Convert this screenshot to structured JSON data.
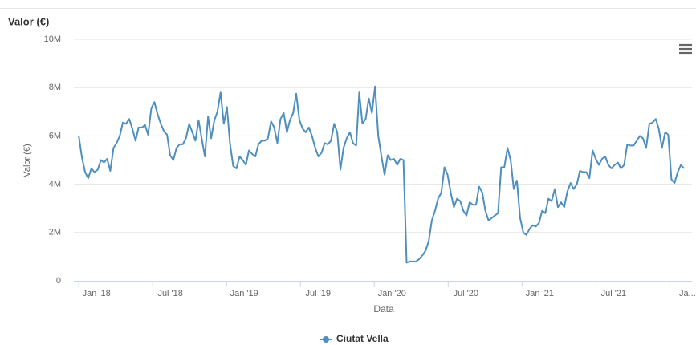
{
  "chart_data": {
    "type": "line",
    "title": "Valor (€)",
    "y_label": "Valor (€)",
    "x_label": "Data",
    "ylim": [
      0,
      10000000
    ],
    "yticks": [
      0,
      {
        "value": 2000000,
        "label": "2M"
      },
      {
        "value": 4000000,
        "label": "4M"
      },
      {
        "value": 6000000,
        "label": "6M"
      },
      {
        "value": 8000000,
        "label": "8M"
      },
      {
        "value": 10000000,
        "label": "10M"
      }
    ],
    "xlim": [
      -0.4,
      49.8
    ],
    "xticks": [
      {
        "value": 0,
        "label": "Jan '18"
      },
      {
        "value": 6,
        "label": "Jul '18"
      },
      {
        "value": 12,
        "label": "Jan '19"
      },
      {
        "value": 18,
        "label": "Jul '19"
      },
      {
        "value": 24,
        "label": "Jan '20"
      },
      {
        "value": 30,
        "label": "Jul '20"
      },
      {
        "value": 36,
        "label": "Jan '21"
      },
      {
        "value": 42,
        "label": "Jul '21"
      },
      {
        "value": 48,
        "label": "Ja..."
      }
    ],
    "grid": true,
    "legend": "bottom",
    "x": [
      0,
      0.26,
      0.51,
      0.77,
      1.02,
      1.28,
      1.54,
      1.79,
      2.05,
      2.3,
      2.56,
      2.82,
      3.07,
      3.33,
      3.58,
      3.84,
      4.1,
      4.35,
      4.61,
      4.86,
      5.12,
      5.38,
      5.63,
      5.89,
      6.14,
      6.4,
      6.66,
      6.91,
      7.17,
      7.42,
      7.68,
      7.94,
      8.19,
      8.45,
      8.7,
      8.96,
      9.22,
      9.47,
      9.73,
      9.98,
      10.24,
      10.5,
      10.75,
      11.01,
      11.26,
      11.52,
      11.78,
      12.03,
      12.29,
      12.54,
      12.8,
      13.06,
      13.31,
      13.57,
      13.82,
      14.08,
      14.34,
      14.59,
      14.85,
      15.1,
      15.36,
      15.62,
      15.87,
      16.13,
      16.38,
      16.64,
      16.9,
      17.15,
      17.41,
      17.66,
      17.92,
      18.18,
      18.43,
      18.69,
      18.94,
      19.2,
      19.46,
      19.71,
      19.97,
      20.22,
      20.48,
      20.74,
      20.99,
      21.25,
      21.5,
      21.76,
      22.02,
      22.27,
      22.53,
      22.78,
      23.04,
      23.3,
      23.55,
      23.81,
      24.06,
      24.32,
      24.58,
      24.83,
      25.09,
      25.34,
      25.6,
      25.86,
      26.11,
      26.37,
      26.62,
      26.88,
      27.14,
      27.39,
      27.65,
      27.9,
      28.16,
      28.42,
      28.67,
      28.93,
      29.18,
      29.44,
      29.7,
      29.95,
      30.21,
      30.46,
      30.72,
      30.98,
      31.23,
      31.49,
      31.74,
      32.0,
      32.26,
      32.51,
      32.77,
      33.02,
      33.28,
      33.54,
      33.79,
      34.05,
      34.3,
      34.56,
      34.82,
      35.07,
      35.33,
      35.58,
      35.84,
      36.1,
      36.35,
      36.61,
      36.86,
      37.12,
      37.38,
      37.63,
      37.89,
      38.14,
      38.4,
      38.66,
      38.91,
      39.17,
      39.42,
      39.68,
      39.94,
      40.19,
      40.45,
      40.7,
      40.96,
      41.22,
      41.47,
      41.73,
      41.98,
      42.24,
      42.5,
      42.75,
      43.01,
      43.26,
      43.52,
      43.78,
      44.03,
      44.29,
      44.54,
      44.8,
      45.06,
      45.31,
      45.57,
      45.82,
      46.08,
      46.34,
      46.59,
      46.85,
      47.1,
      47.36,
      47.62,
      47.87,
      48.13,
      48.38,
      48.64,
      48.9,
      49.15
    ],
    "series": [
      {
        "name": "Ciutat Vella",
        "color": "#4f8fc0",
        "values": [
          6000000,
          5100000,
          4500000,
          4250000,
          4650000,
          4500000,
          4600000,
          5000000,
          4900000,
          5050000,
          4550000,
          5500000,
          5700000,
          6000000,
          6550000,
          6500000,
          6700000,
          6300000,
          5800000,
          6350000,
          6350000,
          6450000,
          6050000,
          7150000,
          7400000,
          6900000,
          6500000,
          6200000,
          6050000,
          5200000,
          5000000,
          5500000,
          5650000,
          5650000,
          5900000,
          6500000,
          6150000,
          5800000,
          6650000,
          5900000,
          5150000,
          6800000,
          5900000,
          6650000,
          7000000,
          7800000,
          6500000,
          7200000,
          5650000,
          4750000,
          4650000,
          5150000,
          5000000,
          4800000,
          5400000,
          5250000,
          5150000,
          5650000,
          5800000,
          5800000,
          5900000,
          6600000,
          6350000,
          5700000,
          6700000,
          6950000,
          6150000,
          6650000,
          6950000,
          7750000,
          6650000,
          6300000,
          6150000,
          6350000,
          6000000,
          5500000,
          5150000,
          5300000,
          5700000,
          5650000,
          5800000,
          6500000,
          6150000,
          4600000,
          5500000,
          5900000,
          6150000,
          5700000,
          5600000,
          7800000,
          6500000,
          6700000,
          7550000,
          6950000,
          8050000,
          6000000,
          5150000,
          4400000,
          5200000,
          5000000,
          5050000,
          4800000,
          5050000,
          5000000,
          750000,
          800000,
          800000,
          800000,
          900000,
          1050000,
          1250000,
          1650000,
          2500000,
          2900000,
          3400000,
          3650000,
          4700000,
          4400000,
          3650000,
          3050000,
          3400000,
          3300000,
          2900000,
          2700000,
          3250000,
          3150000,
          3150000,
          3900000,
          3650000,
          2900000,
          2500000,
          2600000,
          2700000,
          2800000,
          4700000,
          4700000,
          5500000,
          5000000,
          3800000,
          4150000,
          2600000,
          2000000,
          1900000,
          2150000,
          2300000,
          2250000,
          2400000,
          2900000,
          2800000,
          3400000,
          3300000,
          3800000,
          3050000,
          3250000,
          3050000,
          3700000,
          4050000,
          3800000,
          4000000,
          4550000,
          4500000,
          4500000,
          4250000,
          5400000,
          5050000,
          4800000,
          5050000,
          5150000,
          4800000,
          4650000,
          4800000,
          4900000,
          4650000,
          4800000,
          5650000,
          5600000,
          5600000,
          5800000,
          6000000,
          5900000,
          5500000,
          6500000,
          6550000,
          6700000,
          6300000,
          5500000,
          6150000,
          6050000,
          4200000,
          4050000,
          4500000,
          4800000,
          4650000
        ]
      }
    ]
  }
}
